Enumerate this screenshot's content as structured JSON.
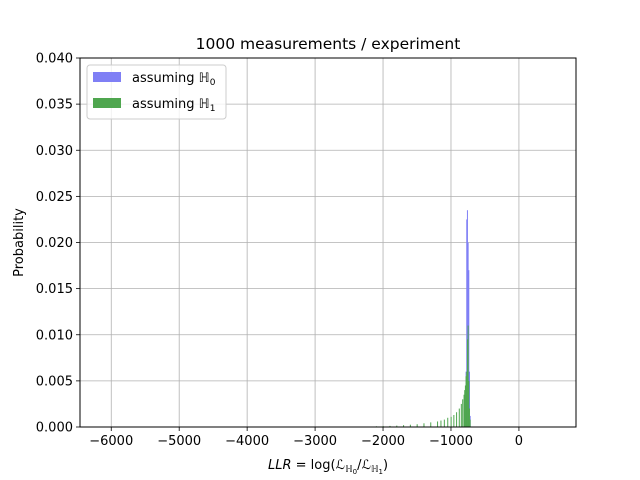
{
  "chart_data": {
    "type": "bar",
    "title": "1000 measurements / experiment",
    "xlabel": "LLR = log(ℒ_ℍ0/ℒ_ℍ1)",
    "xlabel_parts": {
      "italic": "LLR",
      "rest": " = log(ℒ",
      "sub0": "ℍ",
      "sub0b": "0",
      "slash": "/ℒ",
      "sub1": "ℍ",
      "sub1b": "1",
      "close": ")"
    },
    "ylabel": "Probability",
    "xlim": [
      -6460,
      840
    ],
    "ylim": [
      0,
      0.04
    ],
    "xticks": [
      -6000,
      -5000,
      -4000,
      -3000,
      -2000,
      -1000,
      0
    ],
    "xtick_labels": [
      "−6000",
      "−5000",
      "−4000",
      "−3000",
      "−2000",
      "−1000",
      "0"
    ],
    "yticks": [
      0,
      0.005,
      0.01,
      0.015,
      0.02,
      0.025,
      0.03,
      0.035,
      0.04
    ],
    "ytick_labels": [
      "0.000",
      "0.005",
      "0.010",
      "0.015",
      "0.020",
      "0.025",
      "0.030",
      "0.035",
      "0.040"
    ],
    "grid": true,
    "legend_position": "top-left",
    "bin_width": 10,
    "series": [
      {
        "name": "assuming ℍ0",
        "name_base": "assuming ",
        "name_symbol": "ℍ",
        "name_sub": "0",
        "color": "#7f7ff5",
        "bins": [
          {
            "x": -790,
            "y": 0.0015
          },
          {
            "x": -780,
            "y": 0.006
          },
          {
            "x": -770,
            "y": 0.0225
          },
          {
            "x": -760,
            "y": 0.0235
          },
          {
            "x": -750,
            "y": 0.02
          },
          {
            "x": -740,
            "y": 0.017
          },
          {
            "x": -730,
            "y": 0.006
          },
          {
            "x": -720,
            "y": 0.0012
          }
        ]
      },
      {
        "name": "assuming ℍ1",
        "name_base": "assuming ",
        "name_symbol": "ℍ",
        "name_sub": "1",
        "color": "#4fa64f",
        "bins": [
          {
            "x": -2100,
            "y": 8e-05
          },
          {
            "x": -2000,
            "y": 0.0001
          },
          {
            "x": -1900,
            "y": 0.00012
          },
          {
            "x": -1800,
            "y": 0.00015
          },
          {
            "x": -1700,
            "y": 0.0002
          },
          {
            "x": -1600,
            "y": 0.00025
          },
          {
            "x": -1500,
            "y": 0.0003
          },
          {
            "x": -1400,
            "y": 0.0004
          },
          {
            "x": -1300,
            "y": 0.0005
          },
          {
            "x": -1200,
            "y": 0.0006
          },
          {
            "x": -1150,
            "y": 0.0007
          },
          {
            "x": -1100,
            "y": 0.0008
          },
          {
            "x": -1050,
            "y": 0.001
          },
          {
            "x": -1000,
            "y": 0.0011
          },
          {
            "x": -960,
            "y": 0.0013
          },
          {
            "x": -920,
            "y": 0.0016
          },
          {
            "x": -880,
            "y": 0.002
          },
          {
            "x": -850,
            "y": 0.0025
          },
          {
            "x": -830,
            "y": 0.003
          },
          {
            "x": -810,
            "y": 0.0035
          },
          {
            "x": -800,
            "y": 0.004
          },
          {
            "x": -790,
            "y": 0.0045
          },
          {
            "x": -780,
            "y": 0.0055
          },
          {
            "x": -770,
            "y": 0.006
          },
          {
            "x": -760,
            "y": 0.0095
          },
          {
            "x": -750,
            "y": 0.011
          },
          {
            "x": -740,
            "y": 0.005
          },
          {
            "x": -730,
            "y": 0.002
          },
          {
            "x": -720,
            "y": 0.0008
          }
        ]
      }
    ]
  }
}
